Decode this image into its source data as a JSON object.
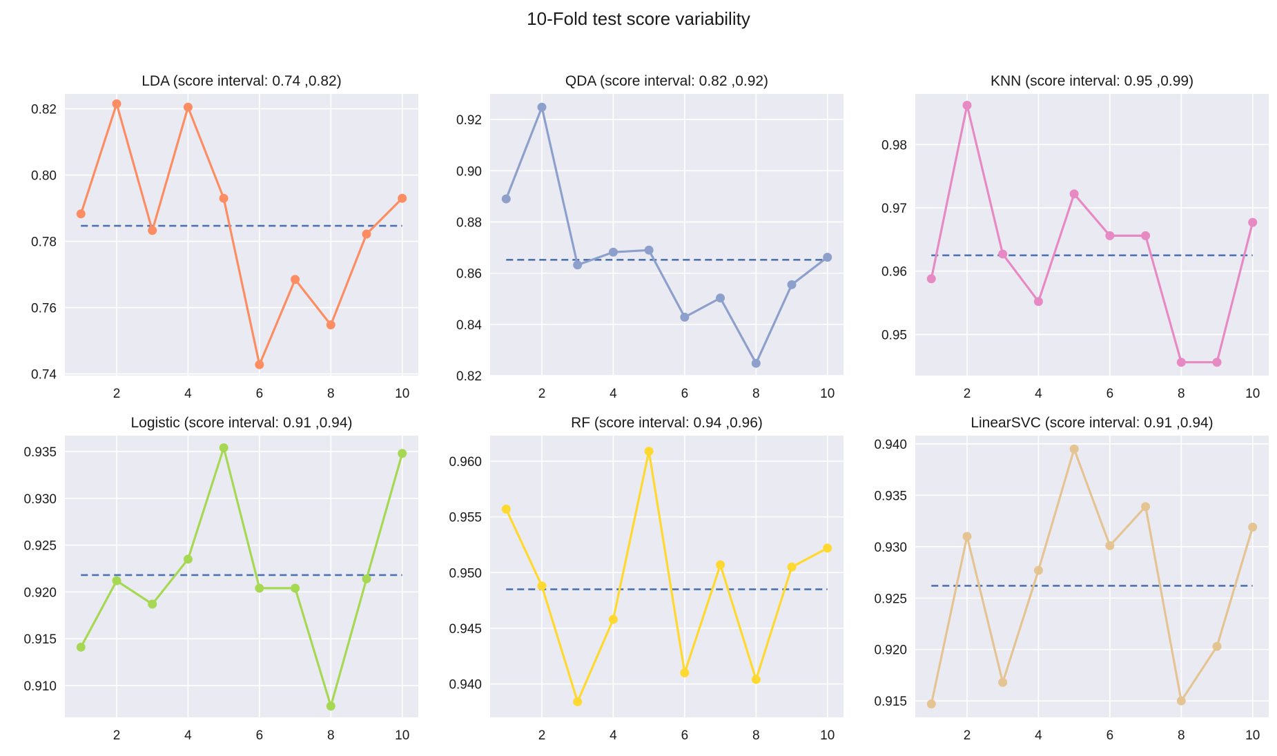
{
  "title": "10-Fold test score variability",
  "mean_color": "#4c72b0",
  "chart_data": [
    {
      "type": "line",
      "title": "LDA (score interval: 0.74 ,0.82)",
      "color": "#fc8d62",
      "x": [
        1,
        2,
        3,
        4,
        5,
        6,
        7,
        8,
        9,
        10
      ],
      "values": [
        0.7883,
        0.8215,
        0.7833,
        0.8205,
        0.793,
        0.7428,
        0.7685,
        0.7548,
        0.7822,
        0.793
      ],
      "mean": 0.7847,
      "xlim": [
        0.55,
        10.45
      ],
      "ylim": [
        0.7395,
        0.8245
      ],
      "xticks": [
        2,
        4,
        6,
        8,
        10
      ],
      "yticks": [
        0.74,
        0.76,
        0.78,
        0.8,
        0.82
      ],
      "yticklabels": [
        "0.74",
        "0.76",
        "0.78",
        "0.80",
        "0.82"
      ],
      "grid": true
    },
    {
      "type": "line",
      "title": "QDA (score interval: 0.82 ,0.92)",
      "color": "#8da0cb",
      "x": [
        1,
        2,
        3,
        4,
        5,
        6,
        7,
        8,
        9,
        10
      ],
      "values": [
        0.889,
        0.9248,
        0.8632,
        0.8682,
        0.869,
        0.8428,
        0.8503,
        0.8248,
        0.8555,
        0.8662
      ],
      "mean": 0.8652,
      "xlim": [
        0.55,
        10.45
      ],
      "ylim": [
        0.82,
        0.93
      ],
      "xticks": [
        2,
        4,
        6,
        8,
        10
      ],
      "yticks": [
        0.82,
        0.84,
        0.86,
        0.88,
        0.9,
        0.92
      ],
      "yticklabels": [
        "0.82",
        "0.84",
        "0.86",
        "0.88",
        "0.90",
        "0.92"
      ],
      "grid": true
    },
    {
      "type": "line",
      "title": "KNN (score interval: 0.95 ,0.99)",
      "color": "#e78ac3",
      "x": [
        1,
        2,
        3,
        4,
        5,
        6,
        7,
        8,
        9,
        10
      ],
      "values": [
        0.9588,
        0.9862,
        0.9627,
        0.9552,
        0.9722,
        0.9656,
        0.9656,
        0.9456,
        0.9456,
        0.9677
      ],
      "mean": 0.9625,
      "xlim": [
        0.55,
        10.45
      ],
      "ylim": [
        0.9435,
        0.988
      ],
      "xticks": [
        2,
        4,
        6,
        8,
        10
      ],
      "yticks": [
        0.95,
        0.96,
        0.97,
        0.98
      ],
      "yticklabels": [
        "0.95",
        "0.96",
        "0.97",
        "0.98"
      ],
      "grid": true
    },
    {
      "type": "line",
      "title": "Logistic (score interval: 0.91 ,0.94)",
      "color": "#a6d854",
      "x": [
        1,
        2,
        3,
        4,
        5,
        6,
        7,
        8,
        9,
        10
      ],
      "values": [
        0.9141,
        0.9212,
        0.9187,
        0.9235,
        0.9354,
        0.9204,
        0.9204,
        0.9078,
        0.9214,
        0.9348
      ],
      "mean": 0.9218,
      "xlim": [
        0.55,
        10.45
      ],
      "ylim": [
        0.9066,
        0.9367
      ],
      "xticks": [
        2,
        4,
        6,
        8,
        10
      ],
      "yticks": [
        0.91,
        0.915,
        0.92,
        0.925,
        0.93,
        0.935
      ],
      "yticklabels": [
        "0.910",
        "0.915",
        "0.920",
        "0.925",
        "0.930",
        "0.935"
      ],
      "grid": true
    },
    {
      "type": "line",
      "title": "RF (score interval: 0.94 ,0.96)",
      "color": "#ffd92f",
      "x": [
        1,
        2,
        3,
        4,
        5,
        6,
        7,
        8,
        9,
        10
      ],
      "values": [
        0.9557,
        0.9488,
        0.9384,
        0.9458,
        0.9609,
        0.941,
        0.9507,
        0.9404,
        0.9505,
        0.9522
      ],
      "mean": 0.9485,
      "xlim": [
        0.55,
        10.45
      ],
      "ylim": [
        0.937,
        0.9623
      ],
      "xticks": [
        2,
        4,
        6,
        8,
        10
      ],
      "yticks": [
        0.94,
        0.945,
        0.95,
        0.955,
        0.96
      ],
      "yticklabels": [
        "0.940",
        "0.945",
        "0.950",
        "0.955",
        "0.960"
      ],
      "grid": true
    },
    {
      "type": "line",
      "title": "LinearSVC (score interval: 0.91 ,0.94)",
      "color": "#e5c494",
      "x": [
        1,
        2,
        3,
        4,
        5,
        6,
        7,
        8,
        9,
        10
      ],
      "values": [
        0.9147,
        0.931,
        0.9168,
        0.9277,
        0.9395,
        0.9301,
        0.9339,
        0.915,
        0.9203,
        0.9319
      ],
      "mean": 0.9262,
      "xlim": [
        0.55,
        10.45
      ],
      "ylim": [
        0.9134,
        0.9408
      ],
      "xticks": [
        2,
        4,
        6,
        8,
        10
      ],
      "yticks": [
        0.915,
        0.92,
        0.925,
        0.93,
        0.935,
        0.94
      ],
      "yticklabels": [
        "0.915",
        "0.920",
        "0.925",
        "0.930",
        "0.935",
        "0.940"
      ],
      "grid": true
    }
  ]
}
